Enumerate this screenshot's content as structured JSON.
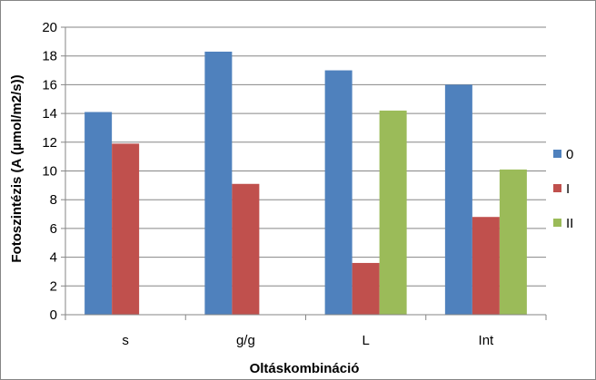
{
  "chart_data": {
    "type": "bar",
    "categories": [
      "s",
      "g/g",
      "L",
      "Int"
    ],
    "series": [
      {
        "name": "0",
        "color": "#4F81BD",
        "values": [
          14.1,
          18.3,
          17.0,
          16.0
        ]
      },
      {
        "name": "I",
        "color": "#C0504D",
        "values": [
          11.9,
          9.1,
          3.6,
          6.8
        ]
      },
      {
        "name": "II",
        "color": "#9BBB59",
        "values": [
          null,
          null,
          14.2,
          10.1
        ]
      }
    ],
    "title": "",
    "xlabel": "Oltáskombináció",
    "ylabel": "Fotoszintézis (A (µmol/m2/s))",
    "ylim": [
      0,
      20
    ],
    "yticks": [
      0,
      2,
      4,
      6,
      8,
      10,
      12,
      14,
      16,
      18,
      20
    ],
    "grid": true,
    "legend_position": "right"
  }
}
